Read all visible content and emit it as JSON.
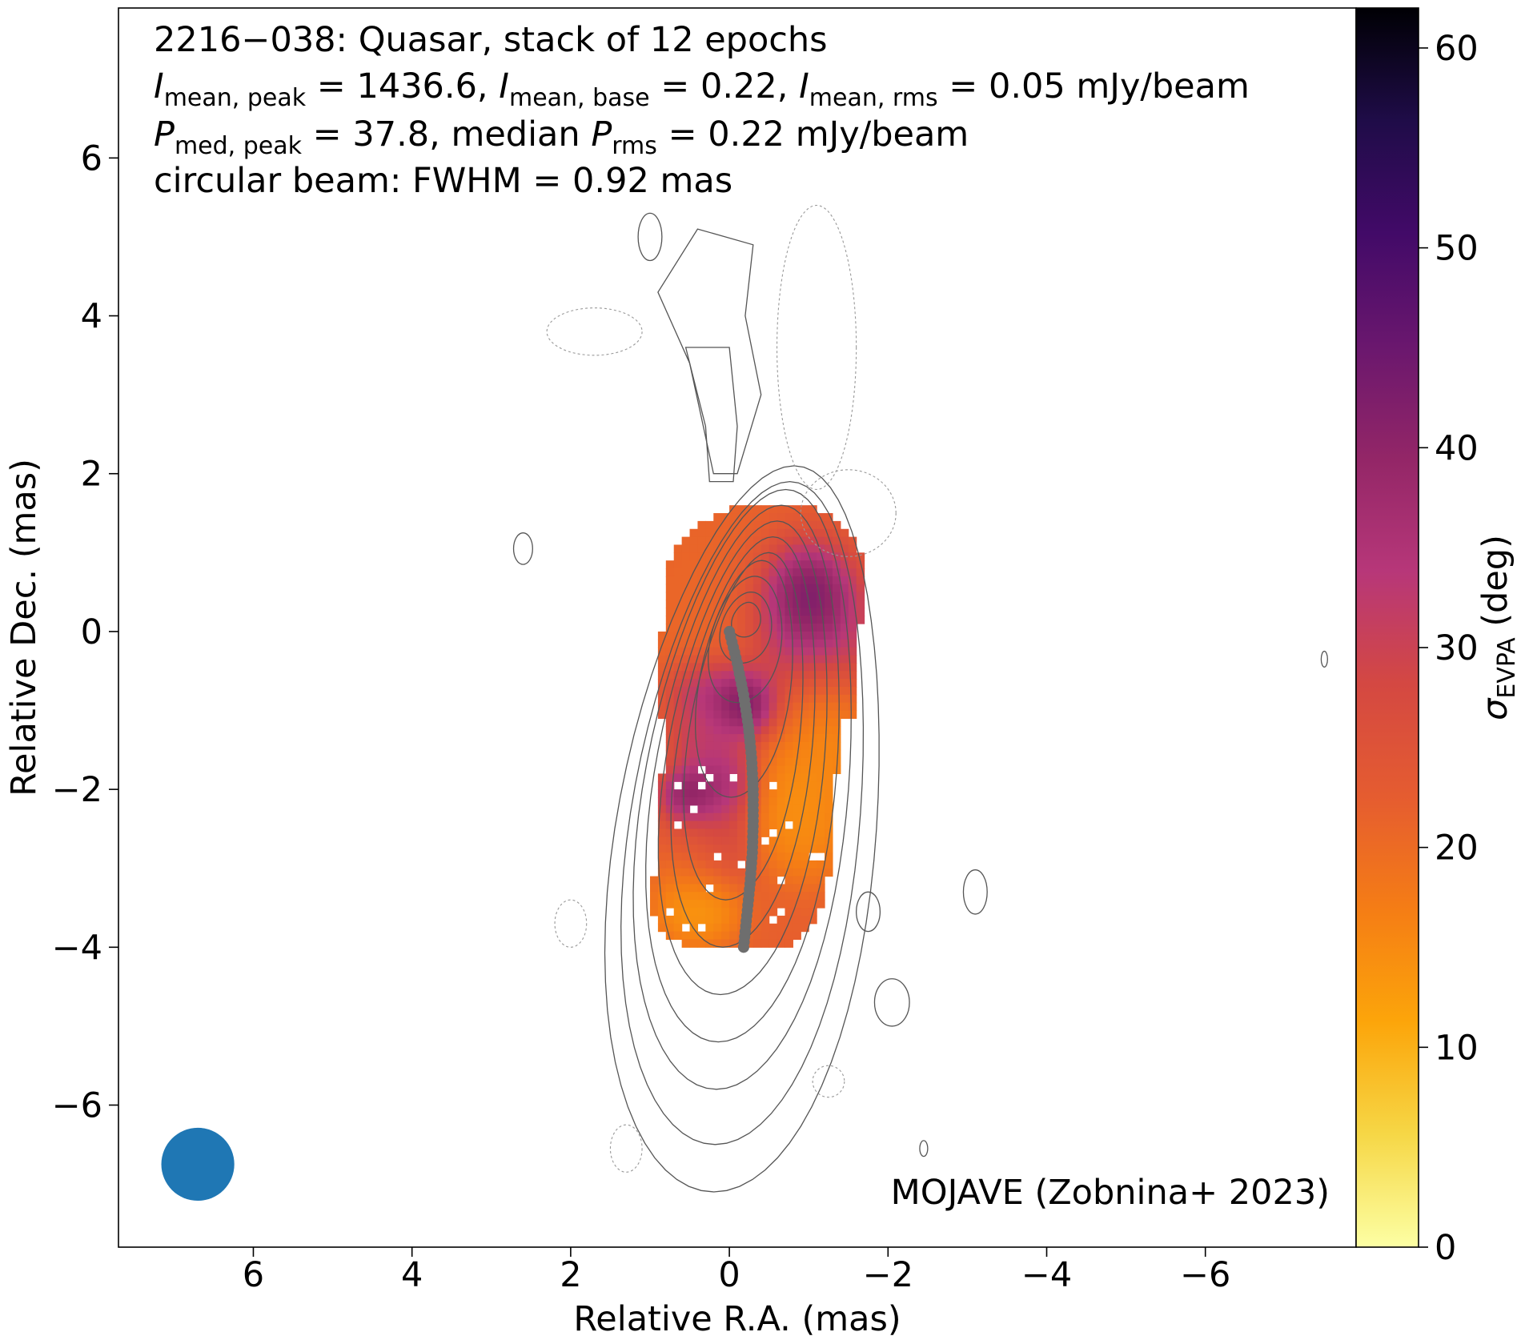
{
  "chart_data": {
    "type": "heatmap",
    "title_lines": [
      {
        "parts": [
          {
            "t": "2216−038: Quasar, stack of 12 epochs"
          }
        ]
      },
      {
        "parts": [
          {
            "t": "I",
            "style": "italic"
          },
          {
            "t": "mean, peak",
            "sub": true
          },
          {
            "t": " = 1436.6, "
          },
          {
            "t": "I",
            "style": "italic"
          },
          {
            "t": "mean, base",
            "sub": true
          },
          {
            "t": " = 0.22, "
          },
          {
            "t": "I",
            "style": "italic"
          },
          {
            "t": "mean, rms",
            "sub": true
          },
          {
            "t": " = 0.05 mJy/beam"
          }
        ]
      },
      {
        "parts": [
          {
            "t": "P",
            "style": "italic"
          },
          {
            "t": "med, peak",
            "sub": true
          },
          {
            "t": " = 37.8, median "
          },
          {
            "t": "P",
            "style": "italic"
          },
          {
            "t": "rms",
            "sub": true
          },
          {
            "t": " = 0.22 mJy/beam"
          }
        ]
      },
      {
        "parts": [
          {
            "t": "circular beam: FWHM = 0.92 mas"
          }
        ]
      }
    ],
    "credit": "MOJAVE (Zobnina+ 2023)",
    "xlabel": "Relative R.A. (mas)",
    "ylabel": "Relative Dec. (mas)",
    "xlim": [
      7.7,
      -7.9
    ],
    "ylim": [
      -7.8,
      7.9
    ],
    "xticks": [
      6,
      4,
      2,
      0,
      -2,
      -4,
      -6
    ],
    "xticklabels": [
      "6",
      "4",
      "2",
      "0",
      "−2",
      "−4",
      "−6"
    ],
    "yticks": [
      6,
      4,
      2,
      0,
      -2,
      -4,
      -6
    ],
    "yticklabels": [
      "6",
      "4",
      "2",
      "0",
      "−2",
      "−4",
      "−6"
    ],
    "colorbar": {
      "label": "σ",
      "label_sub": "EVPA",
      "label_unit": " (deg)",
      "range": [
        0,
        62
      ],
      "ticks": [
        0,
        10,
        20,
        30,
        40,
        50,
        60
      ],
      "ticklabels": [
        "0",
        "10",
        "20",
        "30",
        "40",
        "50",
        "60"
      ],
      "colormap": "inferno_r",
      "colors": [
        "#fcffa4",
        "#f6d746",
        "#fca50a",
        "#f57d15",
        "#e55c30",
        "#d44842",
        "#b73779",
        "#932667",
        "#6a176e",
        "#420a68",
        "#1f0c48",
        "#000004"
      ]
    },
    "beam": {
      "fwhm_mas": 0.92,
      "x": 6.7,
      "y": -6.75,
      "color": "#1f77b4"
    },
    "ridgeline": {
      "color": "#6e6e6e",
      "points": [
        [
          0,
          0
        ],
        [
          -0.1,
          -0.4
        ],
        [
          -0.18,
          -0.8
        ],
        [
          -0.24,
          -1.2
        ],
        [
          -0.28,
          -1.6
        ],
        [
          -0.3,
          -2.0
        ],
        [
          -0.3,
          -2.4
        ],
        [
          -0.29,
          -2.8
        ],
        [
          -0.26,
          -3.2
        ],
        [
          -0.22,
          -3.6
        ],
        [
          -0.18,
          -4.0
        ]
      ]
    },
    "evpa_map": {
      "units": "deg",
      "note": "blobs of fractional-polarization uncertainty, [ra, dec, sx, sy, value]",
      "base_value": 22,
      "blobs": [
        [
          0.1,
          0.1,
          0.9,
          0.9,
          20
        ],
        [
          -0.9,
          -0.1,
          0.45,
          0.6,
          48
        ],
        [
          -0.9,
          0.4,
          0.3,
          0.35,
          58
        ],
        [
          -0.15,
          -0.95,
          0.25,
          0.25,
          62
        ],
        [
          0.3,
          -0.8,
          0.3,
          0.25,
          44
        ],
        [
          -1.0,
          -0.95,
          0.35,
          0.4,
          14
        ],
        [
          -1.15,
          -1.4,
          0.3,
          0.4,
          12
        ],
        [
          0.3,
          -1.35,
          0.3,
          0.3,
          38
        ],
        [
          0.15,
          -2.0,
          0.3,
          0.3,
          45
        ],
        [
          0.55,
          -2.15,
          0.2,
          0.2,
          50
        ],
        [
          0.35,
          -2.7,
          0.35,
          0.35,
          36
        ],
        [
          0.5,
          -3.0,
          0.3,
          0.4,
          12
        ],
        [
          -0.7,
          -2.2,
          0.4,
          0.45,
          11
        ],
        [
          -0.95,
          -2.6,
          0.3,
          0.35,
          14
        ],
        [
          0.45,
          -3.6,
          0.3,
          0.25,
          10
        ]
      ]
    }
  }
}
